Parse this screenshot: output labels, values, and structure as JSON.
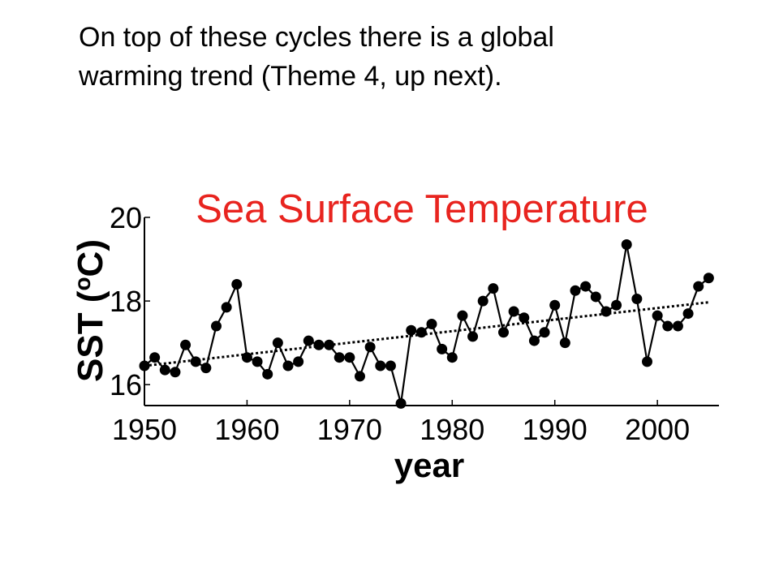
{
  "slide": {
    "text_line1": "On top of these cycles there is a global",
    "text_line2": "warming trend (Theme 4, up next)."
  },
  "chart_data": {
    "type": "line",
    "title": "Sea Surface Temperature",
    "title_color": "#e8241f",
    "xlabel": "year",
    "ylabel_main": "SST (",
    "ylabel_super": "o",
    "ylabel_unit": "C)",
    "xlim": [
      1950,
      2006
    ],
    "ylim": [
      15.5,
      20
    ],
    "x_ticks": [
      1950,
      1960,
      1970,
      1980,
      1990,
      2000
    ],
    "y_ticks": [
      16,
      18,
      20
    ],
    "grid": false,
    "series": [
      {
        "x": [
          1950,
          1951,
          1952,
          1953,
          1954,
          1955,
          1956,
          1957,
          1958,
          1959,
          1960,
          1961,
          1962,
          1963,
          1964,
          1965,
          1966,
          1967,
          1968,
          1969,
          1970,
          1971,
          1972,
          1973,
          1974,
          1975,
          1976,
          1977,
          1978,
          1979,
          1980,
          1981,
          1982,
          1983,
          1984,
          1985,
          1986,
          1987,
          1988,
          1989,
          1990,
          1991,
          1992,
          1993,
          1994,
          1995,
          1996,
          1997,
          1998,
          1999,
          2000,
          2001,
          2002,
          2003,
          2004,
          2005
        ],
        "values": [
          16.45,
          16.65,
          16.35,
          16.3,
          16.95,
          16.55,
          16.4,
          17.4,
          17.85,
          18.4,
          16.65,
          16.55,
          16.25,
          17.0,
          16.45,
          16.55,
          17.05,
          16.95,
          16.95,
          16.65,
          16.65,
          16.2,
          16.9,
          16.45,
          16.45,
          15.55,
          17.3,
          17.25,
          17.45,
          16.85,
          16.65,
          17.65,
          17.15,
          18.0,
          18.3,
          17.25,
          17.75,
          17.6,
          17.05,
          17.25,
          17.9,
          17.0,
          18.25,
          18.35,
          18.1,
          17.75,
          17.9,
          19.35,
          18.05,
          16.55,
          17.65,
          17.4,
          17.4,
          17.7,
          18.35,
          18.55
        ],
        "color": "#000000"
      }
    ],
    "trend": {
      "x": [
        1950,
        2005
      ],
      "y": [
        16.45,
        17.97
      ],
      "style": "dotted"
    }
  }
}
